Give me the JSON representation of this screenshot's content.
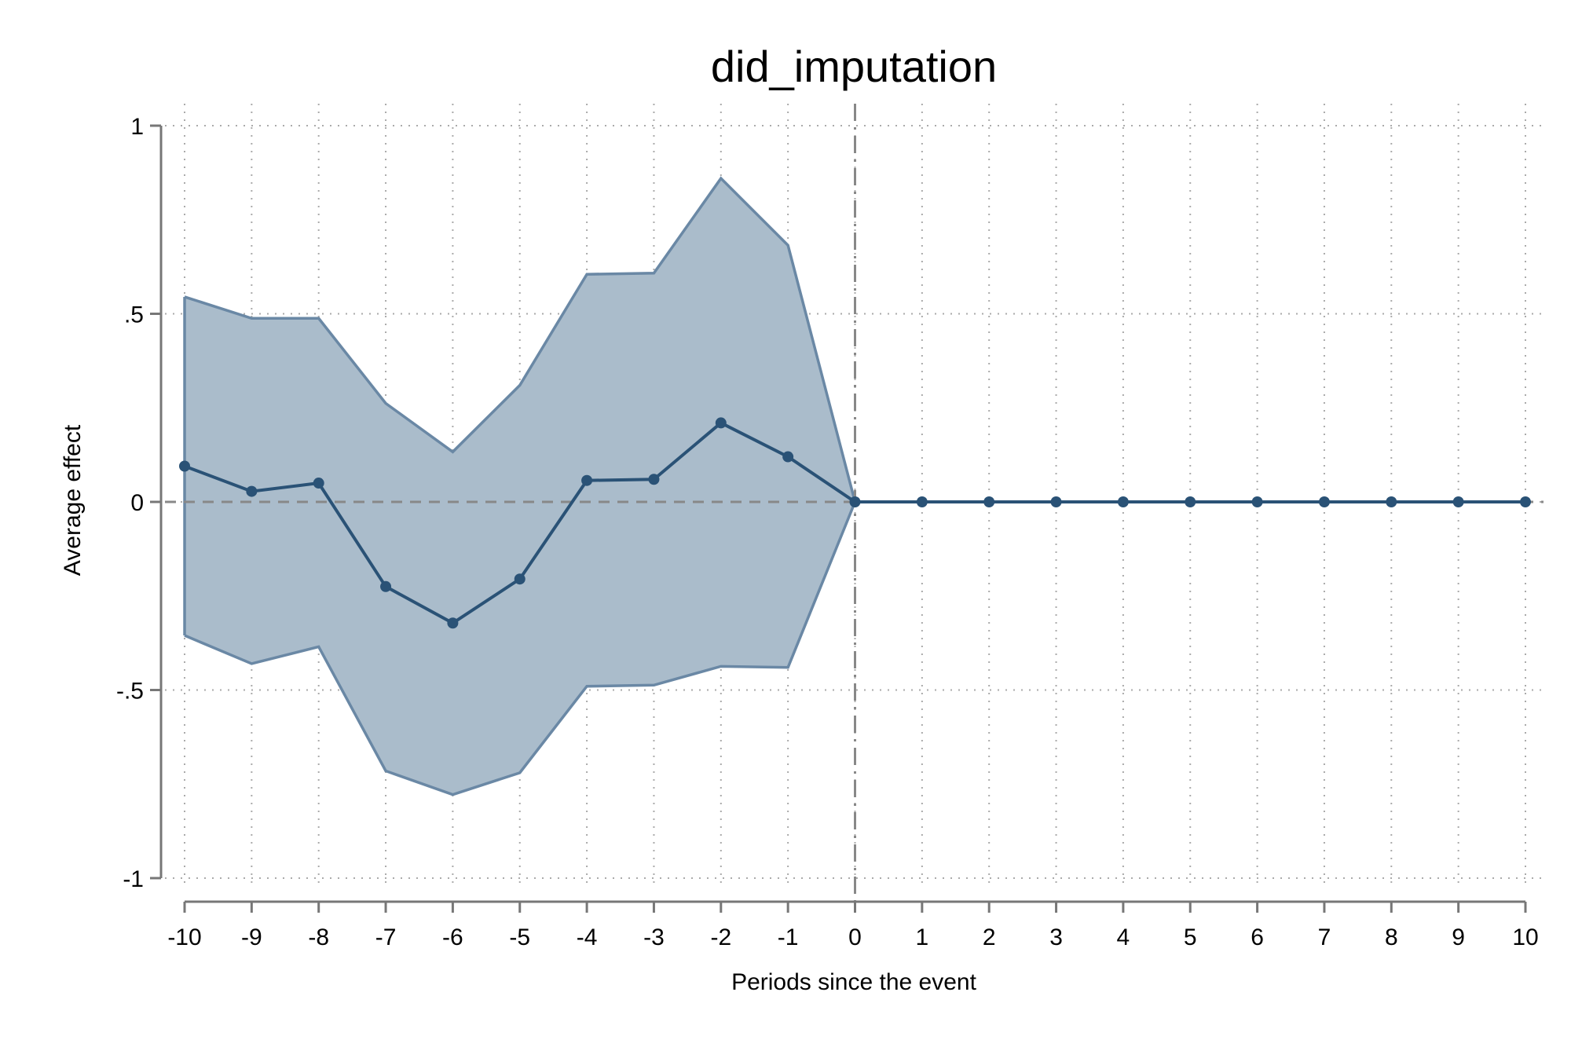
{
  "chart_data": {
    "type": "line",
    "title": "did_imputation",
    "xlabel": "Periods since the event",
    "ylabel": "Average effect",
    "x": [
      -10,
      -9,
      -8,
      -7,
      -6,
      -5,
      -4,
      -3,
      -2,
      -1,
      0,
      1,
      2,
      3,
      4,
      5,
      6,
      7,
      8,
      9,
      10
    ],
    "xticks": [
      "-10",
      "-9",
      "-8",
      "-7",
      "-6",
      "-5",
      "-4",
      "-3",
      "-2",
      "-1",
      "0",
      "1",
      "2",
      "3",
      "4",
      "5",
      "6",
      "7",
      "8",
      "9",
      "10"
    ],
    "yticks": [
      {
        "value": 1,
        "label": "1"
      },
      {
        "value": 0.5,
        "label": ".5"
      },
      {
        "value": 0,
        "label": "0"
      },
      {
        "value": -0.5,
        "label": "-.5"
      },
      {
        "value": -1,
        "label": "-1"
      }
    ],
    "xlim": [
      -10.35,
      10.35
    ],
    "ylim": [
      -1,
      1
    ],
    "series": [
      {
        "values": [
          0.095,
          0.028,
          0.05,
          -0.225,
          -0.322,
          -0.205,
          0.057,
          0.06,
          0.21,
          0.12,
          0,
          0,
          0,
          0,
          0,
          0,
          0,
          0,
          0,
          0,
          0
        ],
        "ci_upper": [
          0.545,
          0.488,
          0.488,
          0.262,
          0.133,
          0.31,
          0.605,
          0.608,
          0.86,
          0.682,
          0
        ],
        "ci_lower": [
          -0.355,
          -0.43,
          -0.385,
          -0.715,
          -0.778,
          -0.72,
          -0.49,
          -0.487,
          -0.437,
          -0.44,
          0
        ]
      }
    ],
    "reference_lines": {
      "horizontal_y": 0,
      "vertical_x": 0
    },
    "grid": true,
    "colors": {
      "line": "#2a5276",
      "band_fill": "#aabccb",
      "band_edge": "#6a88a5",
      "grid": "#aaaaaa",
      "axis": "#777777",
      "refline": "#888888"
    }
  }
}
